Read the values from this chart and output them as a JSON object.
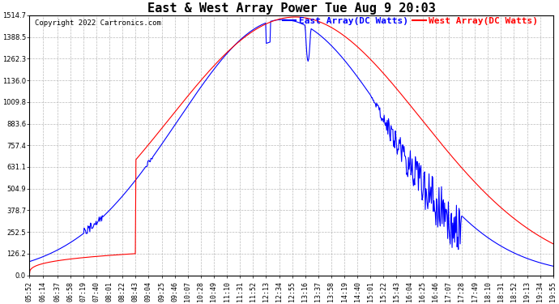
{
  "title": "East & West Array Power Tue Aug 9 20:03",
  "copyright": "Copyright 2022 Cartronics.com",
  "legend_east": "East Array(DC Watts)",
  "legend_west": "West Array(DC Watts)",
  "east_color": "blue",
  "west_color": "red",
  "background_color": "#ffffff",
  "plot_bg_color": "#ffffff",
  "grid_color": "#aaaaaa",
  "yticks": [
    0.0,
    126.2,
    252.5,
    378.7,
    504.9,
    631.1,
    757.4,
    883.6,
    1009.8,
    1136.0,
    1262.3,
    1388.5,
    1514.7
  ],
  "xtick_labels": [
    "05:52",
    "06:14",
    "06:37",
    "06:58",
    "07:19",
    "07:40",
    "08:01",
    "08:22",
    "08:43",
    "09:04",
    "09:25",
    "09:46",
    "10:07",
    "10:28",
    "10:49",
    "11:10",
    "11:31",
    "11:52",
    "12:13",
    "12:34",
    "12:55",
    "13:16",
    "13:37",
    "13:58",
    "14:19",
    "14:40",
    "15:01",
    "15:22",
    "15:43",
    "16:04",
    "16:25",
    "16:46",
    "17:07",
    "17:28",
    "17:49",
    "18:10",
    "18:31",
    "18:52",
    "19:13",
    "19:34",
    "19:55"
  ],
  "ymax": 1514.7,
  "ymin": 0.0,
  "title_fontsize": 11,
  "copyright_fontsize": 6.5,
  "legend_fontsize": 8,
  "tick_fontsize": 6,
  "line_width": 0.8
}
